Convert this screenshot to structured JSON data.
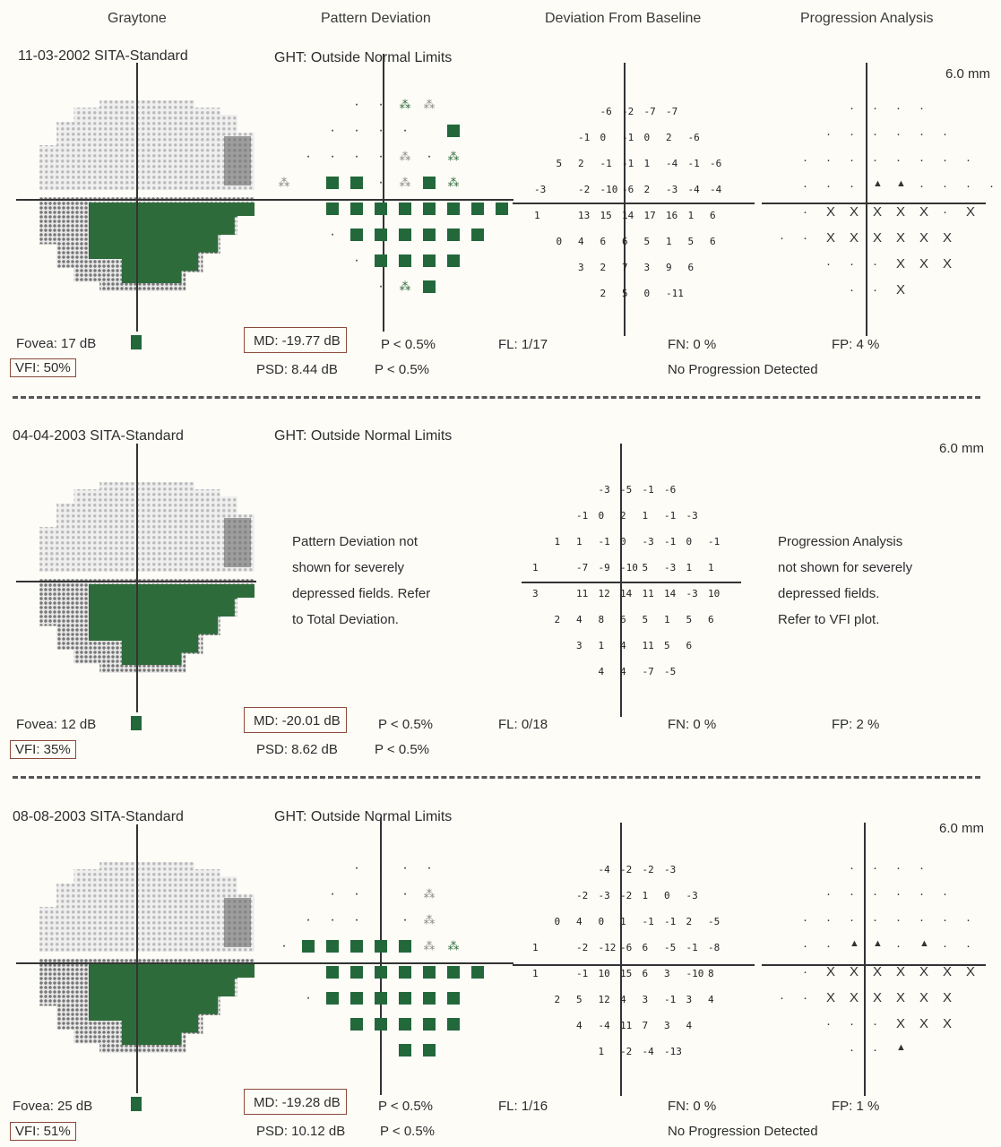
{
  "headers": {
    "graytone": "Graytone",
    "pattern_deviation": "Pattern Deviation",
    "deviation_from_baseline": "Deviation From Baseline",
    "progression_analysis": "Progression Analysis"
  },
  "exams": [
    {
      "date_strategy": "11-03-2002 SITA-Standard",
      "ght": "GHT: Outside Normal Limits",
      "size": "6.0 mm",
      "fovea": "Fovea: 17 dB",
      "vfi": "VFI: 50%",
      "md": "MD: -19.77 dB",
      "md_p": "P < 0.5%",
      "psd": "PSD: 8.44 dB",
      "psd_p": "P < 0.5%",
      "fl": "FL: 1/17",
      "fn": "FN: 0 %",
      "fp": "FP: 4 %",
      "progression_note": "No Progression Detected",
      "baseline_rows": [
        [
          "-6",
          "-2",
          "-7",
          "-7"
        ],
        [
          "-1",
          "0",
          "-1",
          "0",
          "2",
          "-6"
        ],
        [
          "5",
          "2",
          "-1",
          "-1",
          "1",
          "-4",
          "-1",
          "-6"
        ],
        [
          "-3",
          "",
          "-2",
          "-10",
          "-6",
          "2",
          "-3",
          "-4",
          "-4"
        ],
        [
          "1",
          "",
          "13",
          "15",
          "14",
          "17",
          "16",
          "1",
          "6"
        ],
        [
          "0",
          "4",
          "6",
          "6",
          "5",
          "1",
          "5",
          "6"
        ],
        [
          "3",
          "2",
          "7",
          "3",
          "9",
          "6"
        ],
        [
          "2",
          "5",
          "0",
          "-11"
        ]
      ]
    },
    {
      "date_strategy": "04-04-2003 SITA-Standard",
      "ght": "GHT: Outside Normal Limits",
      "size": "6.0 mm",
      "fovea": "Fovea: 12 dB",
      "vfi": "VFI: 35%",
      "md": "MD: -20.01 dB",
      "md_p": "P < 0.5%",
      "psd": "PSD: 8.62 dB",
      "psd_p": "P < 0.5%",
      "fl": "FL: 0/18",
      "fn": "FN: 0 %",
      "fp": "FP: 2 %",
      "pd_message": [
        "Pattern Deviation not",
        "shown for severely",
        "depressed fields. Refer",
        "to Total Deviation."
      ],
      "pa_message": [
        "Progression Analysis",
        "not shown for severely",
        "depressed fields.",
        "Refer to VFI plot."
      ],
      "baseline_rows": [
        [
          "-3",
          "-5",
          "-1",
          "-6"
        ],
        [
          "-1",
          "0",
          "2",
          "1",
          "-1",
          "-3"
        ],
        [
          "1",
          "1",
          "-1",
          "0",
          "-3",
          "-1",
          "0",
          "-1"
        ],
        [
          "1",
          "",
          "-7",
          "-9",
          "-10",
          "5",
          "-3",
          "1",
          "1"
        ],
        [
          "3",
          "",
          "11",
          "12",
          "14",
          "11",
          "14",
          "-3",
          "10"
        ],
        [
          "2",
          "4",
          "8",
          "6",
          "5",
          "1",
          "5",
          "6"
        ],
        [
          "3",
          "1",
          "4",
          "11",
          "5",
          "6"
        ],
        [
          "4",
          "4",
          "-7",
          "-5"
        ]
      ]
    },
    {
      "date_strategy": "08-08-2003 SITA-Standard",
      "ght": "GHT: Outside Normal Limits",
      "size": "6.0 mm",
      "fovea": "Fovea: 25 dB",
      "vfi": "VFI: 51%",
      "md": "MD: -19.28 dB",
      "md_p": "P < 0.5%",
      "psd": "PSD: 10.12 dB",
      "psd_p": "P < 0.5%",
      "fl": "FL: 1/16",
      "fn": "FN: 0 %",
      "fp": "FP: 1 %",
      "progression_note": "No Progression Detected",
      "baseline_rows": [
        [
          "-4",
          "-2",
          "-2",
          "-3"
        ],
        [
          "-2",
          "-3",
          "-2",
          "1",
          "0",
          "-3"
        ],
        [
          "0",
          "4",
          "0",
          "1",
          "-1",
          "-1",
          "2",
          "-5"
        ],
        [
          "1",
          "",
          "-2",
          "-12",
          "-6",
          "6",
          "-5",
          "-1",
          "-8"
        ],
        [
          "1",
          "",
          "-1",
          "10",
          "15",
          "6",
          "3",
          "-10",
          "8"
        ],
        [
          "2",
          "5",
          "12",
          "4",
          "3",
          "-1",
          "3",
          "4"
        ],
        [
          "4",
          "-4",
          "11",
          "7",
          "3",
          "4"
        ],
        [
          "1",
          "-2",
          "-4",
          "-13"
        ]
      ]
    }
  ]
}
